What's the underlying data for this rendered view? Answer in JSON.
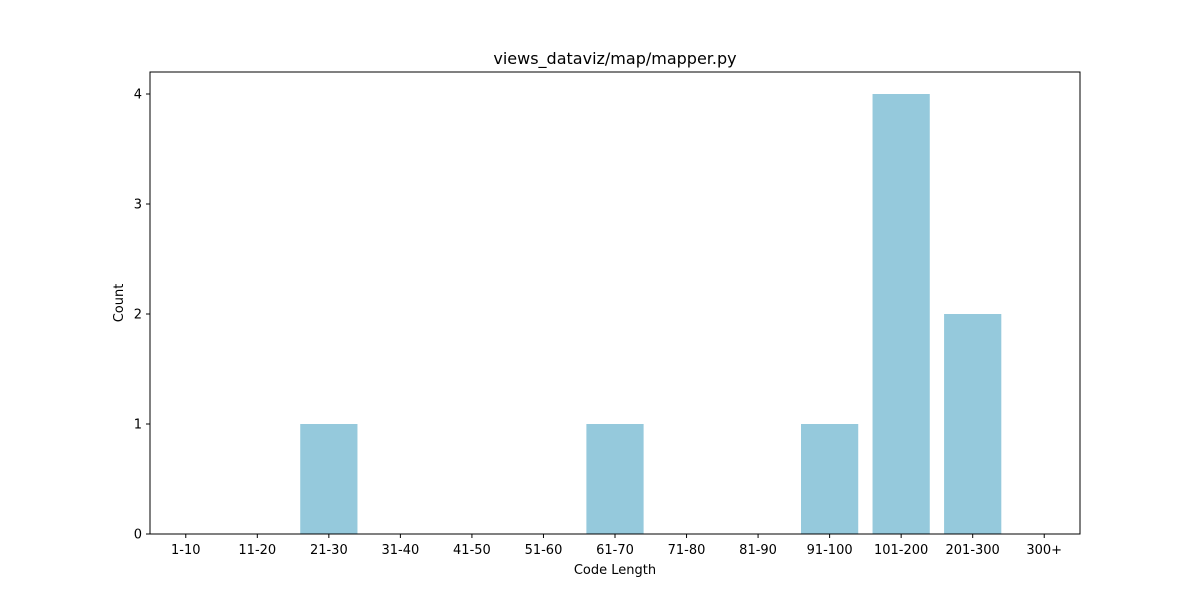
{
  "chart_data": {
    "type": "bar",
    "title": "views_dataviz/map/mapper.py",
    "xlabel": "Code Length",
    "ylabel": "Count",
    "categories": [
      "1-10",
      "11-20",
      "21-30",
      "31-40",
      "41-50",
      "51-60",
      "61-70",
      "71-80",
      "81-90",
      "91-100",
      "101-200",
      "201-300",
      "300+"
    ],
    "values": [
      0,
      0,
      1,
      0,
      0,
      0,
      1,
      0,
      0,
      1,
      4,
      2,
      0
    ],
    "ylim": [
      0,
      4.2
    ],
    "yticks": [
      0,
      1,
      2,
      3,
      4
    ],
    "grid": false,
    "bar_color": "#95c9dc"
  }
}
